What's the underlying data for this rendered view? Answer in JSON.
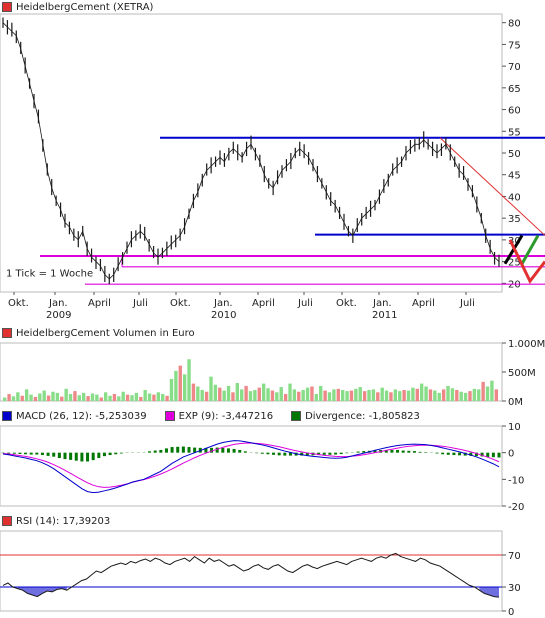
{
  "price_title": "HeidelbergCement (XETRA)",
  "volume_title": "HeidelbergCement Volumen in Euro",
  "macd": {
    "label": "MACD (26, 12): -5,253039",
    "exp_label": "EXP (9): -3,447216",
    "div_label": "Divergence: -1,805823"
  },
  "rsi_label": "RSI (14): 17,39203",
  "tick_note": "1 Tick = 1 Woche",
  "colors": {
    "price_up": "#1a1a1a",
    "price_down": "#1a1a1a",
    "resistance": "#0000cc",
    "support": "#dd00dd",
    "trend_red": "#e03030",
    "macd": "#0000cc",
    "exp": "#dd00dd",
    "div": "#007700",
    "rsi_line": "#1a1a1a",
    "rsi_fill": "#6f6fe0",
    "vol_up": "#88dd88",
    "vol_down": "#ee8888"
  },
  "chart_data": [
    {
      "type": "line",
      "title": "HeidelbergCement (XETRA)",
      "x_tick_labels": [
        "Okt.",
        "Jan.",
        "April",
        "Juli",
        "Okt.",
        "Jan.",
        "April",
        "Juli",
        "Okt.",
        "Jan.",
        "April",
        "Juli"
      ],
      "x_year_labels": [
        "2009",
        "2010",
        "2011"
      ],
      "y_ticks": [
        20,
        25,
        30,
        35,
        40,
        45,
        50,
        55,
        60,
        65,
        70,
        75,
        80
      ],
      "ylim": [
        18,
        82
      ],
      "series": [
        {
          "name": "HeidelbergCement",
          "weekly_close": [
            80,
            79,
            78,
            77,
            74,
            70,
            66,
            62,
            58,
            52,
            46,
            42,
            39,
            37,
            34,
            33,
            31,
            30,
            32,
            28,
            26,
            25,
            24,
            22,
            21,
            22,
            24,
            26,
            28,
            30,
            31,
            32,
            31,
            29,
            27,
            26,
            27,
            28,
            29,
            30,
            31,
            33,
            36,
            39,
            41,
            44,
            46,
            47,
            48,
            49,
            48,
            50,
            51,
            50,
            49,
            51,
            52,
            50,
            48,
            45,
            43,
            42,
            44,
            46,
            47,
            48,
            50,
            51,
            50,
            49,
            47,
            45,
            43,
            41,
            39,
            38,
            36,
            34,
            32,
            31,
            33,
            35,
            36,
            37,
            38,
            40,
            42,
            44,
            46,
            47,
            48,
            50,
            51,
            52,
            52,
            53,
            52,
            51,
            50,
            51,
            52,
            50,
            48,
            46,
            45,
            43,
            41,
            38,
            35,
            31,
            28,
            26,
            25
          ]
        }
      ],
      "levels": [
        {
          "kind": "resistance",
          "value": 53.5
        },
        {
          "kind": "resistance",
          "value": 31.2
        },
        {
          "kind": "support",
          "value": 26.3
        },
        {
          "kind": "support",
          "value": 23.8
        },
        {
          "kind": "support",
          "value": 19.8
        }
      ]
    },
    {
      "type": "bar",
      "title": "HeidelbergCement Volumen in Euro",
      "y_tick_labels": [
        "1.000M",
        "500M",
        "0M"
      ],
      "ylim": [
        0,
        1000
      ],
      "series": [
        {
          "name": "Volumen",
          "values": [
            60,
            120,
            80,
            150,
            90,
            200,
            110,
            70,
            130,
            180,
            95,
            160,
            140,
            75,
            210,
            120,
            170,
            100,
            140,
            85,
            130,
            110,
            60,
            150,
            90,
            120,
            80,
            160,
            110,
            100,
            140,
            70,
            190,
            130,
            110,
            150,
            120,
            90,
            380,
            520,
            610,
            460,
            720,
            300,
            250,
            190,
            160,
            420,
            280,
            230,
            180,
            260,
            150,
            310,
            200,
            260,
            170,
            190,
            230,
            300,
            220,
            180,
            150,
            240,
            120,
            300,
            200,
            160,
            190,
            230,
            250,
            120,
            260,
            180,
            150,
            200,
            210,
            190,
            170,
            180,
            210,
            240,
            170,
            190,
            200,
            150,
            230,
            180,
            150,
            200,
            170,
            190,
            180,
            230,
            210,
            300,
            250,
            200,
            180,
            140,
            200,
            260,
            220,
            190,
            160,
            140,
            170,
            210,
            200,
            330,
            250,
            350,
            200
          ]
        }
      ]
    },
    {
      "type": "line",
      "title": "MACD (26, 12)",
      "y_ticks": [
        10,
        0,
        -10,
        -20
      ],
      "ylim": [
        -20,
        10
      ],
      "series": [
        {
          "name": "MACD (26, 12)",
          "values": [
            -0.5,
            -0.8,
            -1.2,
            -1.6,
            -2,
            -2.5,
            -3,
            -3.8,
            -4.8,
            -6,
            -7.5,
            -9,
            -10.5,
            -12,
            -13.5,
            -14.6,
            -15,
            -14.8,
            -14.3,
            -13.8,
            -13.2,
            -12.5,
            -11.8,
            -11,
            -10.5,
            -10,
            -9,
            -8,
            -7,
            -5.5,
            -4,
            -2.8,
            -1.6,
            -0.8,
            0,
            0.8,
            1.6,
            2.4,
            3.2,
            3.8,
            4.2,
            4.5,
            4.4,
            4.1,
            3.7,
            3.3,
            2.9,
            2.4,
            1.8,
            1.2,
            0.6,
            0.1,
            -0.4,
            -0.8,
            -1.1,
            -1.4,
            -1.6,
            -1.8,
            -2,
            -2.1,
            -2,
            -1.7,
            -1.2,
            -0.7,
            -0.2,
            0.3,
            0.9,
            1.4,
            1.9,
            2.3,
            2.7,
            2.9,
            3.1,
            3.2,
            3.1,
            3,
            2.7,
            2.3,
            1.8,
            1.3,
            0.8,
            0.3,
            -0.3,
            -0.9,
            -1.6,
            -2.4,
            -3.3,
            -4.2,
            -5.3
          ]
        },
        {
          "name": "EXP (9)",
          "values": [
            -0.3,
            -0.5,
            -0.8,
            -1.1,
            -1.4,
            -1.8,
            -2.3,
            -2.9,
            -3.6,
            -4.5,
            -5.5,
            -6.6,
            -7.8,
            -9,
            -10.2,
            -11.3,
            -12.2,
            -12.8,
            -13,
            -12.9,
            -12.6,
            -12.2,
            -11.7,
            -11.1,
            -10.6,
            -10.1,
            -9.5,
            -8.8,
            -8,
            -7.1,
            -6.1,
            -5,
            -3.9,
            -2.9,
            -1.9,
            -1,
            -0.2,
            0.6,
            1.3,
            2,
            2.6,
            3.1,
            3.4,
            3.6,
            3.6,
            3.5,
            3.3,
            3,
            2.6,
            2.2,
            1.7,
            1.2,
            0.7,
            0.3,
            -0.1,
            -0.4,
            -0.7,
            -1,
            -1.2,
            -1.4,
            -1.5,
            -1.5,
            -1.3,
            -1.1,
            -0.8,
            -0.4,
            0,
            0.4,
            0.9,
            1.3,
            1.7,
            2.1,
            2.4,
            2.6,
            2.8,
            2.8,
            2.8,
            2.6,
            2.4,
            2.1,
            1.7,
            1.3,
            0.8,
            0.3,
            -0.3,
            -1,
            -1.7,
            -2.5,
            -3.4
          ]
        },
        {
          "name": "Divergence",
          "values": [
            -0.2,
            -0.3,
            -0.4,
            -0.5,
            -0.6,
            -0.7,
            -0.7,
            -0.9,
            -1.2,
            -1.5,
            -2,
            -2.4,
            -2.7,
            -3,
            -3.3,
            -3.3,
            -2.8,
            -2,
            -1.3,
            -0.9,
            -0.6,
            -0.3,
            -0.1,
            0.1,
            0.1,
            0.1,
            0.5,
            0.8,
            1,
            1.6,
            2.1,
            2.2,
            2.3,
            2.1,
            1.9,
            1.8,
            1.8,
            1.8,
            1.9,
            1.8,
            1.6,
            1.4,
            1,
            0.5,
            0.1,
            -0.2,
            -0.4,
            -0.6,
            -0.8,
            -1,
            -1.1,
            -1.1,
            -1.1,
            -1.1,
            -1,
            -1,
            -0.9,
            -0.8,
            -0.8,
            -0.7,
            -0.5,
            -0.2,
            0.1,
            0.4,
            0.6,
            0.7,
            0.9,
            1,
            1,
            1,
            1,
            0.8,
            0.7,
            0.6,
            0.3,
            0.2,
            -0.1,
            -0.3,
            -0.6,
            -0.8,
            -0.9,
            -1,
            -1.1,
            -1.2,
            -1.3,
            -1.4,
            -1.6,
            -1.7,
            -1.8
          ]
        }
      ]
    },
    {
      "type": "area",
      "title": "RSI (14)",
      "y_ticks": [
        70,
        30,
        0
      ],
      "ylim": [
        0,
        100
      ],
      "thresholds": [
        70,
        30
      ],
      "series": [
        {
          "name": "RSI (14)",
          "values": [
            32,
            35,
            30,
            28,
            26,
            22,
            20,
            18,
            22,
            25,
            24,
            27,
            28,
            26,
            30,
            34,
            38,
            40,
            45,
            50,
            48,
            52,
            56,
            58,
            60,
            58,
            62,
            60,
            63,
            65,
            62,
            66,
            64,
            60,
            58,
            62,
            64,
            66,
            62,
            68,
            64,
            60,
            66,
            62,
            64,
            60,
            56,
            58,
            54,
            50,
            52,
            56,
            58,
            54,
            52,
            56,
            58,
            54,
            50,
            48,
            52,
            56,
            58,
            55,
            53,
            56,
            58,
            60,
            62,
            60,
            58,
            62,
            64,
            66,
            64,
            62,
            66,
            68,
            66,
            70,
            72,
            68,
            66,
            64,
            62,
            66,
            64,
            60,
            58,
            56,
            52,
            48,
            44,
            40,
            36,
            32,
            30,
            26,
            22,
            20,
            18,
            17.4
          ]
        }
      ]
    }
  ]
}
